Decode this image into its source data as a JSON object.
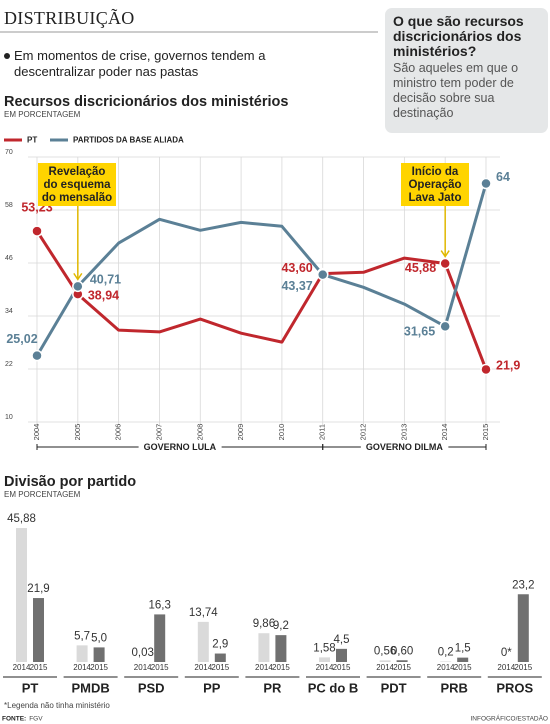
{
  "header": {
    "title": "DISTRIBUIÇÃO",
    "lead": "Em momentos de crise, governos tendem a descentralizar poder nas pastas"
  },
  "sidebar": {
    "title": "O que são recursos discricionários dos ministérios?",
    "text": "São aqueles em que o ministro tem poder de decisão sobre sua destinação"
  },
  "chart_data": [
    {
      "type": "line",
      "title": "Recursos discricionários dos ministérios",
      "subtitle": "EM PORCENTAGEM",
      "categories": [
        "2004",
        "2005",
        "2006",
        "2007",
        "2008",
        "2009",
        "2010",
        "2011",
        "2012",
        "2013",
        "2014",
        "2015"
      ],
      "series": [
        {
          "name": "PT",
          "color": "#c0272d",
          "values": [
            53.23,
            38.94,
            30.8,
            30.4,
            33.3,
            30.1,
            28.1,
            43.6,
            43.9,
            47.1,
            45.88,
            21.9
          ],
          "value_labels": [
            "53,23",
            "38,94",
            null,
            null,
            null,
            null,
            null,
            "43,60",
            null,
            null,
            "45,88",
            "21,9"
          ]
        },
        {
          "name": "PARTIDOS DA BASE ALIADA",
          "color": "#5b8096",
          "values": [
            25.02,
            40.71,
            50.5,
            55.9,
            53.4,
            55.2,
            54.3,
            43.37,
            40.5,
            36.7,
            31.65,
            64
          ],
          "value_labels": [
            "25,02",
            "40,71",
            null,
            null,
            null,
            null,
            null,
            "43,37",
            null,
            null,
            "31,65",
            "64"
          ]
        }
      ],
      "ylim": [
        10,
        70
      ],
      "yticks": [
        10,
        22,
        34,
        46,
        58,
        70
      ],
      "grid": true,
      "annotations": [
        {
          "text": "Revelação do esquema do mensalão",
          "x": "2005"
        },
        {
          "text": "Início da Operação Lava Jato",
          "x": "2014"
        }
      ],
      "periods": [
        {
          "label": "GOVERNO LULA",
          "from": "2004",
          "to": "2011"
        },
        {
          "label": "GOVERNO DILMA",
          "from": "2011",
          "to": "2015"
        }
      ]
    },
    {
      "type": "bar",
      "title": "Divisão por partido",
      "subtitle": "EM PORCENTAGEM",
      "categories": [
        "PT",
        "PMDB",
        "PSD",
        "PP",
        "PR",
        "PC do B",
        "PDT",
        "PRB",
        "PROS"
      ],
      "series": [
        {
          "name": "2014",
          "color": "#dadada",
          "values": [
            45.88,
            5.7,
            0.03,
            13.74,
            9.86,
            1.58,
            0.56,
            0.2,
            0
          ],
          "value_labels": [
            "45,88",
            "5,7",
            "0,03",
            "13,74",
            "9,86",
            "1,58",
            "0,56",
            "0,2",
            "0*"
          ]
        },
        {
          "name": "2015",
          "color": "#707070",
          "values": [
            21.9,
            5.0,
            16.3,
            2.9,
            9.2,
            4.5,
            0.6,
            1.5,
            23.2
          ],
          "value_labels": [
            "21,9",
            "5,0",
            "16,3",
            "2,9",
            "9,2",
            "4,5",
            "0,60",
            "1,5",
            "23,2"
          ]
        }
      ]
    }
  ],
  "footnote": "*Legenda não tinha ministério",
  "footer": {
    "source_label": "FONTE:",
    "source": "FGV",
    "credit": "INFOGRÁFICO/ESTADÃO"
  }
}
